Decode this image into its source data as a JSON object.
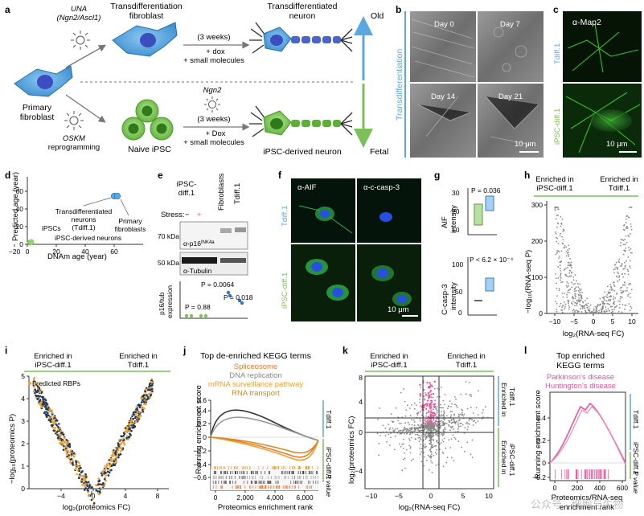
{
  "panels": {
    "a": "a",
    "b": "b",
    "c": "c",
    "d": "d",
    "e": "e",
    "f": "f",
    "g": "g",
    "h": "h",
    "i": "i",
    "j": "j",
    "k": "k",
    "l": "l"
  },
  "panel_a": {
    "una": "UNA",
    "una_genes": "(Ngn2/Ascl1)",
    "trans_fibro": "Transdifferentiation",
    "trans_fibro2": "fibroblast",
    "trans_neuron": "Transdifferentiated",
    "trans_neuron2": "neuron",
    "weeks": "(3 weeks)",
    "dox": "+ dox",
    "small_mol": "+ small molecules",
    "primary1": "Primary",
    "primary2": "fibroblast",
    "ngn2": "Ngn2",
    "oskm": "OSKM",
    "reprog": "reprogramming",
    "naive_ipsc": "Naive iPSC",
    "weeks2": "(3 weeks)",
    "dox2": "+ Dox",
    "small_mol2": "+ small molecules",
    "ipsc_neuron": "iPSC-derived neuron",
    "old": "Old",
    "fetal": "Fetal"
  },
  "panel_b": {
    "day0": "Day 0",
    "day7": "Day 7",
    "day14": "Day 14",
    "day21": "Day 21",
    "side": "Transdifferentiation",
    "scale": "10 μm"
  },
  "panel_c": {
    "title": "α-Map2",
    "row1": "Tdiff.1",
    "row2": "iPSC-diff.1",
    "scale": "10 μm"
  },
  "panel_d": {
    "ylabel": "Predicted age (year)",
    "xlabel": "DNAm age (year)",
    "xticks": [
      "−20",
      "0",
      "20",
      "40",
      "60"
    ],
    "yticks": [
      "0",
      "20",
      "40",
      "60"
    ],
    "ann_tdiff1": "Transdifferentiated",
    "ann_tdiff2": "neurons",
    "ann_tdiff3": "(Tdiff.1)",
    "ann_primary1": "Primary",
    "ann_primary2": "fibroblasts",
    "ann_ipsc": "iPSCs",
    "ann_ipscn": "iPSC-derived neurons"
  },
  "panel_e": {
    "col1a": "iPSC-",
    "col1b": "diff.1",
    "col2": "Fibroblasts",
    "col3": "Tdiff.1",
    "stress": "Stress:",
    "minus": "−",
    "plus": "+",
    "kda70": "70 kDa",
    "kda50": "50 kDa",
    "p16": "α-p16",
    "p16sup": "INK4a",
    "tubulin": "α-Tubulin",
    "ylabel1": "p16/tub",
    "ylabel2": "expression",
    "p1": "P = 0.0064",
    "p2": "P = 0.018",
    "p3": "P = 0.88"
  },
  "panel_f": {
    "aif": "α-AIF",
    "casp": "α-c-casp-3",
    "row1": "Tdiff.1",
    "row2": "iPSC-diff.1",
    "scale": "10 μm"
  },
  "panel_g": {
    "p1": "P = 0.036",
    "p2": "P < 6.2 × 10⁻⁴",
    "y1a": "AIF",
    "y1b": "intensity",
    "y2a": "C-casp-3",
    "y2b": "intensity",
    "ticks_top": [
      "10",
      "20",
      "30"
    ],
    "ticks_bot": [
      "0",
      "50",
      "100"
    ]
  },
  "panel_h": {
    "left1": "Enriched in",
    "left2": "iPSC-diff.1",
    "right1": "Enriched in",
    "right2": "Tdiff.1",
    "ylabel": "−log₁₀(RNA-seq P)",
    "xlabel": "log₂(RNA-seq FC)",
    "xticks": [
      "−10",
      "−5",
      "0",
      "5",
      "10"
    ],
    "yticks": [
      "0",
      "100",
      "200",
      "300"
    ]
  },
  "panel_i": {
    "left1": "Enriched in",
    "left2": "iPSC-diff.1",
    "right1": "Enriched in",
    "right2": "Tdiff.1",
    "legend": "Predicted RBPs",
    "ylabel": "−log₁₀(proteomics P)",
    "xlabel": "log₂(proteomics FC)",
    "xticks": [
      "−4",
      "0",
      "4",
      "8"
    ],
    "yticks": [
      "0",
      "1",
      "2",
      "3",
      "4",
      "5"
    ]
  },
  "panel_j": {
    "title": "Top de-enriched KEGG terms",
    "t1": "Spliceosome",
    "t2": "DNA replication",
    "t3": "mRNA surveillance pathway",
    "t4": "RNA transport",
    "ylabel": "Running enrichment score",
    "xlabel": "Proteomics enrichment rank",
    "xticks": [
      "0",
      "2,000",
      "4,000",
      "6,000"
    ],
    "yticks": [
      "−0.6",
      "−0.4",
      "−0.2",
      "0",
      "0.2",
      "0.4",
      "0.6"
    ],
    "side1": "Tdiff.1",
    "side2": "iPSC-diff.1",
    "pval": "P value"
  },
  "panel_k": {
    "left1": "Enriched in",
    "left2": "iPSC-diff.1",
    "right1": "Enriched in",
    "right2": "Tdiff.1",
    "ylabel": "log₂(proteomics FC)",
    "xlabel": "log₂(RNA-seq FC)",
    "xticks": [
      "−10",
      "−5",
      "0",
      "5",
      "10"
    ],
    "yticks": [
      "−4",
      "0",
      "4",
      "8"
    ],
    "side1a": "Enriched in",
    "side1b": "Tdiff.1",
    "side2a": "Enriched in",
    "side2b": "iPSC-diff.1"
  },
  "panel_l": {
    "title1": "Top enriched",
    "title2": "KEGG terms",
    "t1": "Parkinson's disease",
    "t2": "Huntington's disease",
    "ylabel": "Running enrichment score",
    "xlabel1": "Proteomics/RNA-seq",
    "xlabel2": "enrichment rank",
    "xticks": [
      "0",
      "200",
      "400",
      "600"
    ],
    "yticks": [
      "−0.2",
      "0",
      "0.2",
      "0.4"
    ],
    "side1": "Tdiff.1",
    "side2": "iPSC-diff.1",
    "pval": "P value"
  },
  "watermark": "公众号 · 细胞与生物",
  "colors": {
    "blue_cell": "#5aa8e2",
    "green_cell": "#7ccc4a",
    "old_arrow": "#5aa8e2",
    "fetal_arrow": "#7cc05a",
    "orange": "#f0a030",
    "pink": "#e8559a",
    "navy": "#1f3a60",
    "grey": "#8a8a8a"
  }
}
